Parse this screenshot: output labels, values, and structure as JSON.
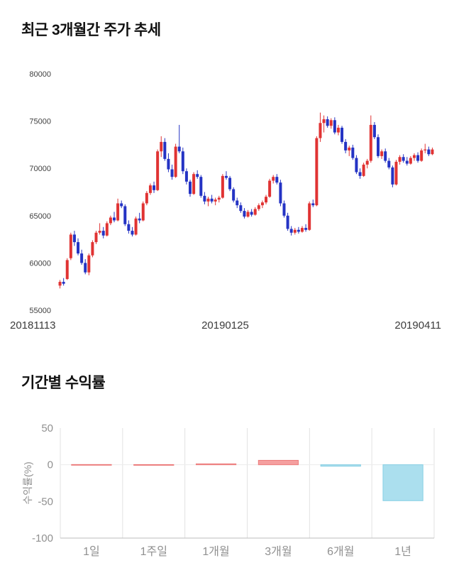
{
  "page": {
    "background": "#ffffff"
  },
  "chart_data": [
    {
      "type": "candlestick",
      "title": "최근 3개월간 주가 추세",
      "ylim": [
        55000,
        80000
      ],
      "y_ticks": [
        55000,
        60000,
        65000,
        70000,
        75000,
        80000
      ],
      "x_labels": [
        "20181113",
        "20190125",
        "20190411"
      ],
      "up_color": "#e03333",
      "down_color": "#2433c4",
      "tick_color": "#3f3f3f",
      "grid": false,
      "candles": [
        [
          57600,
          58200,
          57300,
          58000
        ],
        [
          58000,
          58400,
          57600,
          57800
        ],
        [
          58300,
          60500,
          58200,
          60300
        ],
        [
          60500,
          63200,
          60300,
          63000
        ],
        [
          63000,
          63400,
          61800,
          62200
        ],
        [
          62200,
          62600,
          60800,
          61000
        ],
        [
          61000,
          61400,
          59800,
          60000
        ],
        [
          60000,
          60400,
          58800,
          59000
        ],
        [
          59000,
          61000,
          58700,
          60800
        ],
        [
          60800,
          62400,
          60600,
          62200
        ],
        [
          62200,
          63400,
          62000,
          63200
        ],
        [
          63200,
          64200,
          63000,
          63400
        ],
        [
          63400,
          63800,
          62600,
          62900
        ],
        [
          62900,
          64400,
          62800,
          64200
        ],
        [
          64200,
          65000,
          64000,
          64800
        ],
        [
          64800,
          65400,
          64300,
          64500
        ],
        [
          64500,
          66800,
          64400,
          66300
        ],
        [
          66300,
          66600,
          65800,
          66000
        ],
        [
          66000,
          66200,
          63900,
          64100
        ],
        [
          64100,
          64500,
          63100,
          63400
        ],
        [
          63400,
          63800,
          62800,
          63000
        ],
        [
          63000,
          64900,
          62900,
          64700
        ],
        [
          64700,
          65300,
          64200,
          64500
        ],
        [
          64500,
          66500,
          64400,
          66300
        ],
        [
          66300,
          67600,
          66100,
          67400
        ],
        [
          67400,
          68400,
          67200,
          68200
        ],
        [
          68200,
          68600,
          67400,
          67700
        ],
        [
          67700,
          72000,
          67600,
          71800
        ],
        [
          71800,
          73400,
          71200,
          72800
        ],
        [
          72800,
          73200,
          70800,
          71000
        ],
        [
          71000,
          71600,
          69600,
          69900
        ],
        [
          69900,
          70400,
          68800,
          69100
        ],
        [
          69100,
          72600,
          69000,
          72300
        ],
        [
          72300,
          74600,
          71600,
          71800
        ],
        [
          71800,
          72200,
          69400,
          69700
        ],
        [
          69700,
          70000,
          68300,
          68600
        ],
        [
          68600,
          68800,
          67000,
          67300
        ],
        [
          67300,
          69600,
          67200,
          69400
        ],
        [
          69400,
          69800,
          68900,
          69100
        ],
        [
          69100,
          69300,
          66900,
          67100
        ],
        [
          67100,
          67500,
          66200,
          66500
        ],
        [
          66500,
          67000,
          66000,
          66800
        ],
        [
          66800,
          67200,
          66300,
          66500
        ],
        [
          66500,
          66900,
          66100,
          66700
        ],
        [
          66700,
          67100,
          66400,
          66900
        ],
        [
          66900,
          69400,
          66800,
          69200
        ],
        [
          69200,
          69700,
          68800,
          69000
        ],
        [
          69000,
          69200,
          67600,
          67800
        ],
        [
          67800,
          68000,
          66400,
          66600
        ],
        [
          66600,
          66900,
          65800,
          66100
        ],
        [
          66100,
          66400,
          65300,
          65500
        ],
        [
          65500,
          65800,
          64700,
          64900
        ],
        [
          64900,
          65600,
          64800,
          65400
        ],
        [
          65400,
          65700,
          64900,
          65100
        ],
        [
          65100,
          65900,
          65000,
          65700
        ],
        [
          65700,
          66300,
          65500,
          66100
        ],
        [
          66100,
          66600,
          65800,
          66400
        ],
        [
          66400,
          67200,
          66200,
          67000
        ],
        [
          67000,
          68900,
          66900,
          68700
        ],
        [
          68700,
          69300,
          68400,
          69100
        ],
        [
          69100,
          69400,
          68300,
          68500
        ],
        [
          68500,
          68800,
          66000,
          66300
        ],
        [
          66300,
          66600,
          64800,
          65000
        ],
        [
          65000,
          65300,
          63400,
          63600
        ],
        [
          63600,
          63900,
          62900,
          63200
        ],
        [
          63200,
          63700,
          63000,
          63500
        ],
        [
          63500,
          63800,
          63100,
          63300
        ],
        [
          63300,
          63900,
          63200,
          63700
        ],
        [
          63700,
          64100,
          63300,
          63500
        ],
        [
          63500,
          66500,
          63400,
          66300
        ],
        [
          66300,
          66700,
          65900,
          66100
        ],
        [
          66100,
          73400,
          66000,
          73200
        ],
        [
          73200,
          75900,
          72800,
          74800
        ],
        [
          74800,
          75600,
          73800,
          75200
        ],
        [
          75200,
          75500,
          74300,
          74500
        ],
        [
          74500,
          75300,
          74200,
          75100
        ],
        [
          75100,
          75400,
          73600,
          73800
        ],
        [
          73800,
          74600,
          73500,
          74300
        ],
        [
          74300,
          74500,
          72600,
          72800
        ],
        [
          72800,
          73100,
          71600,
          71900
        ],
        [
          71900,
          72400,
          71300,
          72200
        ],
        [
          72200,
          72500,
          70900,
          71100
        ],
        [
          71100,
          71400,
          69400,
          69600
        ],
        [
          69600,
          70000,
          68900,
          69200
        ],
        [
          69200,
          70600,
          69100,
          70400
        ],
        [
          70400,
          71000,
          70000,
          70800
        ],
        [
          70800,
          75600,
          70600,
          74600
        ],
        [
          74600,
          74900,
          73100,
          73300
        ],
        [
          73300,
          73600,
          71100,
          71300
        ],
        [
          71300,
          72000,
          71000,
          71800
        ],
        [
          71800,
          72100,
          70600,
          70800
        ],
        [
          70800,
          71100,
          69900,
          70100
        ],
        [
          70100,
          70300,
          68000,
          68300
        ],
        [
          68300,
          70900,
          68200,
          70700
        ],
        [
          70700,
          71400,
          70400,
          71200
        ],
        [
          71200,
          71500,
          70600,
          70800
        ],
        [
          70800,
          71200,
          70300,
          70500
        ],
        [
          70500,
          71300,
          70400,
          71100
        ],
        [
          71100,
          71600,
          70800,
          71400
        ],
        [
          71400,
          71700,
          70600,
          70800
        ],
        [
          70800,
          72100,
          70700,
          71900
        ],
        [
          71900,
          72600,
          71600,
          72000
        ],
        [
          72000,
          72300,
          71300,
          71500
        ],
        [
          71500,
          72200,
          71400,
          72000
        ]
      ]
    },
    {
      "type": "bar",
      "title": "기간별 수익률",
      "ylabel": "수익률(%)",
      "categories": [
        "1일",
        "1주일",
        "1개월",
        "3개월",
        "6개월",
        "1년"
      ],
      "values": [
        0.3,
        0.2,
        1.2,
        6.0,
        -2.0,
        -49.0
      ],
      "ylim": [
        -100,
        50
      ],
      "y_ticks": [
        50,
        0,
        -50,
        -100
      ],
      "grid": "vertical",
      "positive_color": "#f59f9f",
      "positive_border": "#ec7d7d",
      "negative_color": "#abdfee",
      "negative_border": "#86cfe4",
      "grid_color": "#e2e2e2",
      "zero_line_color": "#ececec",
      "axis_color": "#bdbdbd",
      "label_color": "#909090"
    }
  ]
}
